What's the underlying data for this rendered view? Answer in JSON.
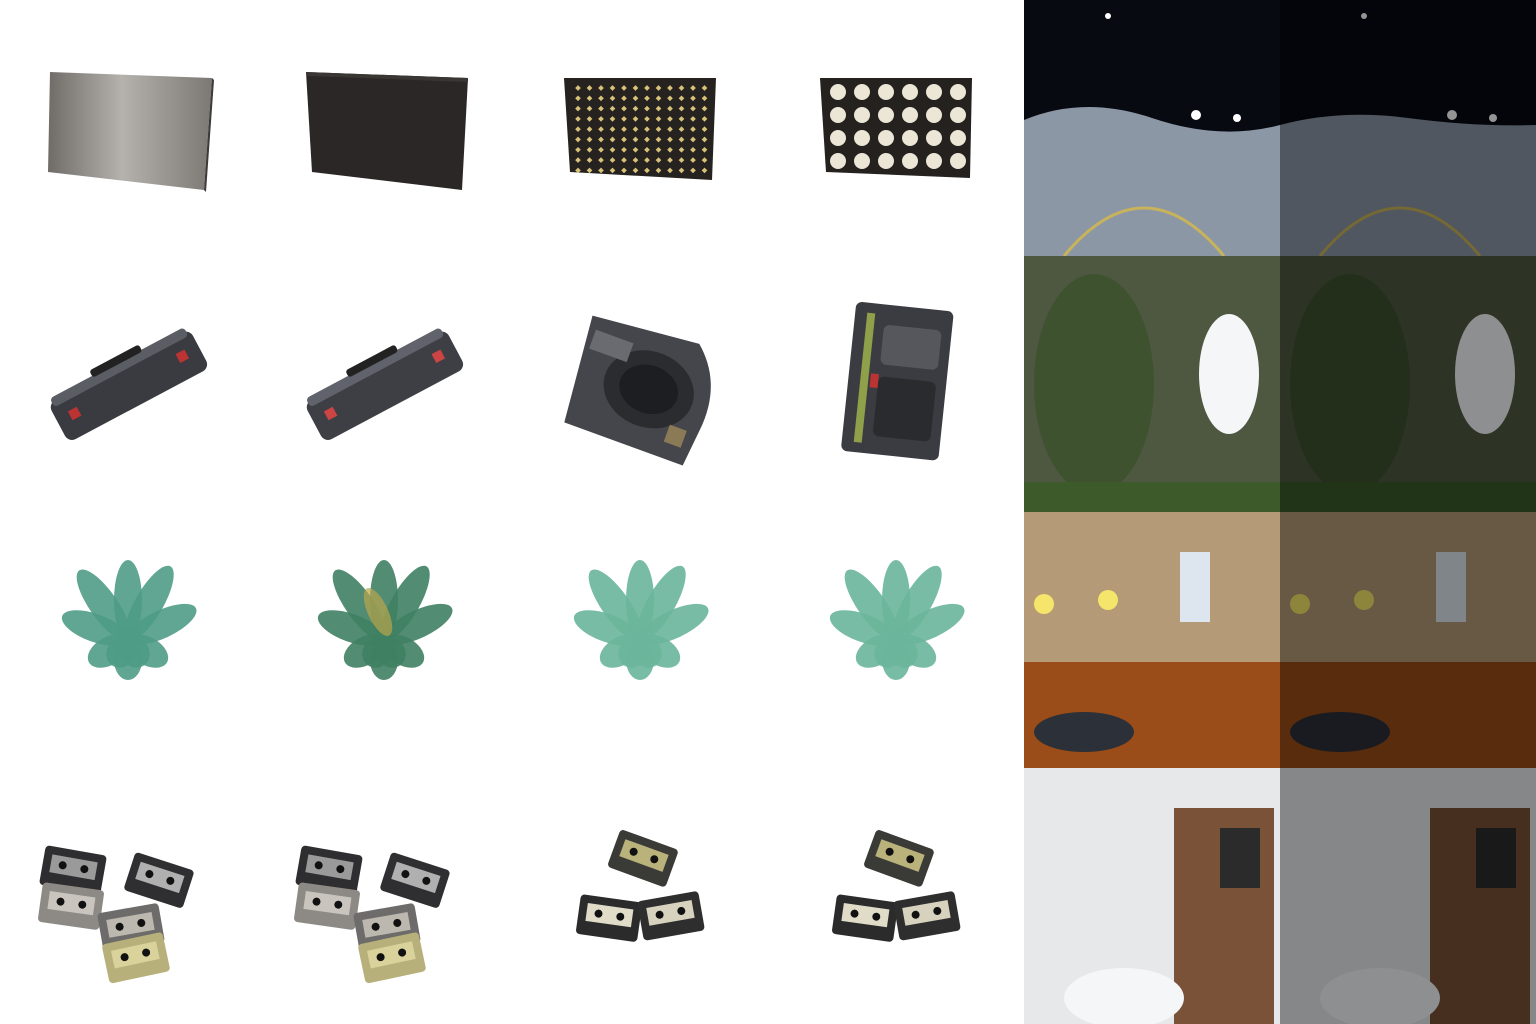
{
  "rows": [
    {
      "object": "flat-panel",
      "panorama": "night-parking-lot"
    },
    {
      "object": "camera-case",
      "panorama": "overgrown-ruin"
    },
    {
      "object": "green-plant",
      "panorama": "living-room-warm"
    },
    {
      "object": "cassette-tapes",
      "panorama": "room-bright-window"
    }
  ],
  "columns": [
    "render-a",
    "render-b",
    "render-c",
    "render-d"
  ],
  "colors": {
    "background": "#ffffff",
    "panel_metal": "#9a9792",
    "panel_dark": "#2a2726",
    "plant_green": "#4f9c86",
    "case_dark": "#3a3b40"
  },
  "panorama_dimmed_half": "right"
}
